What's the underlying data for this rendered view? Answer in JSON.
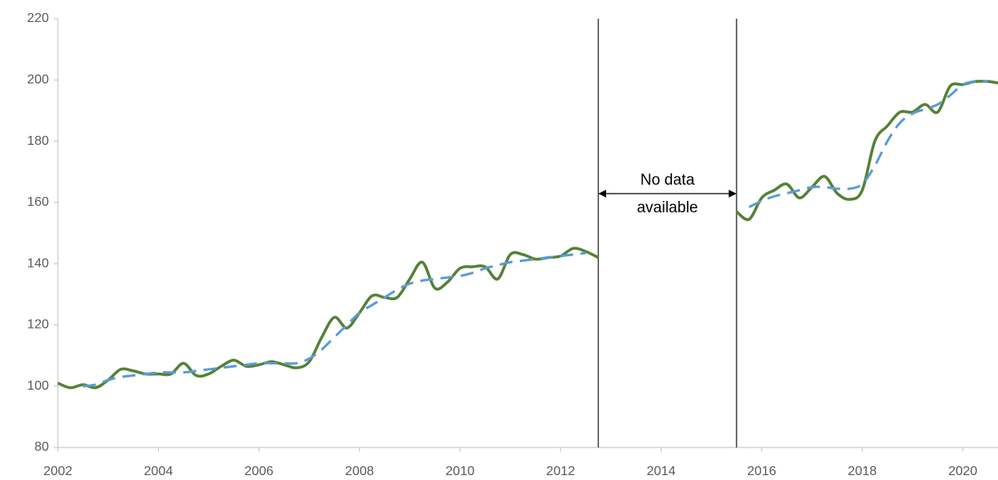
{
  "chart_data": {
    "type": "line",
    "x": [
      2002,
      2002.25,
      2002.5,
      2002.75,
      2003,
      2003.25,
      2003.5,
      2003.75,
      2004,
      2004.25,
      2004.5,
      2004.75,
      2005,
      2005.25,
      2005.5,
      2005.75,
      2006,
      2006.25,
      2006.5,
      2006.75,
      2007,
      2007.25,
      2007.5,
      2007.75,
      2008,
      2008.25,
      2008.5,
      2008.75,
      2009,
      2009.25,
      2009.5,
      2009.75,
      2010,
      2010.25,
      2010.5,
      2010.75,
      2011,
      2011.25,
      2011.5,
      2011.75,
      2012,
      2012.25,
      2012.5,
      2012.75,
      2014,
      2015.5,
      2015.75,
      2016,
      2016.25,
      2016.5,
      2016.75,
      2017,
      2017.25,
      2017.5,
      2017.75,
      2018,
      2018.25,
      2018.5,
      2018.75,
      2019,
      2019.25,
      2019.5,
      2019.75,
      2020,
      2020.25,
      2020.5,
      2020.7
    ],
    "series": [
      {
        "color": "#548235",
        "dash": false,
        "values": [
          101,
          99.5,
          100.5,
          99.5,
          102,
          105.5,
          105,
          104,
          104,
          104,
          107.5,
          103.5,
          104,
          106.5,
          108.5,
          106.5,
          107,
          108,
          107,
          106,
          108,
          116,
          122.5,
          119,
          124,
          129.5,
          129,
          129,
          135,
          140.5,
          132,
          134,
          138.5,
          139,
          139,
          135,
          143,
          143,
          141.5,
          142,
          142.5,
          145,
          144,
          142,
          null,
          157,
          154.5,
          161.5,
          164,
          166,
          161.5,
          165,
          168.5,
          163,
          161,
          164,
          180,
          185,
          189.5,
          189.5,
          192,
          189.5,
          198,
          198.5,
          199.5,
          199.5,
          199
        ]
      },
      {
        "color": "#5b9bd5",
        "dash": true,
        "values": [
          null,
          null,
          100,
          100.5,
          102,
          103,
          103.5,
          104,
          104.5,
          104.5,
          104.5,
          105,
          105.5,
          106,
          106.5,
          107,
          107.5,
          107.5,
          107.5,
          107.5,
          109,
          112,
          116,
          120,
          124,
          126.5,
          129,
          131.5,
          133.5,
          134.5,
          135,
          135.5,
          136,
          137,
          138.5,
          139.5,
          140.5,
          141,
          141.5,
          142,
          142.5,
          143,
          143.5,
          null,
          null,
          null,
          158.5,
          160.5,
          162,
          163,
          164,
          165,
          165,
          164.5,
          164.5,
          166,
          172,
          180,
          186,
          189,
          190.5,
          192,
          195,
          198.5,
          199.5,
          199.5,
          null
        ]
      }
    ],
    "xlim": [
      2002,
      2020.7
    ],
    "xticks": [
      2002,
      2004,
      2006,
      2008,
      2010,
      2012,
      2014,
      2016,
      2018,
      2020
    ],
    "ylim": [
      80,
      220
    ],
    "yticks": [
      80,
      100,
      120,
      140,
      160,
      180,
      200,
      220
    ],
    "grid": false,
    "annotation": {
      "text": [
        "No data",
        "available"
      ],
      "x": [
        2012.75,
        2015.5
      ]
    }
  }
}
